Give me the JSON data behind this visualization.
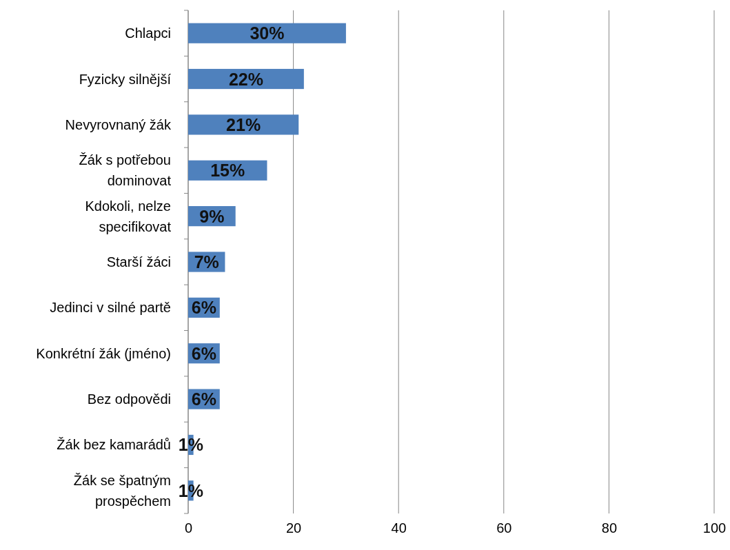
{
  "chart_data": {
    "type": "bar",
    "orientation": "horizontal",
    "categories": [
      "Chlapci",
      "Fyzicky silnější",
      "Nevyrovnaný žák",
      "Žák s potřebou dominovat",
      "Kdokoli, nelze specifikovat",
      "Starší žáci",
      "Jedinci v silné partě",
      "Konkrétní žák (jméno)",
      "Bez odpovědi",
      "Žák bez kamarádů",
      "Žák se špatným prospěchem"
    ],
    "values": [
      30,
      22,
      21,
      15,
      9,
      7,
      6,
      6,
      6,
      1,
      1
    ],
    "value_labels": [
      "30%",
      "22%",
      "21%",
      "15%",
      "9%",
      "7%",
      "6%",
      "6%",
      "6%",
      "1%",
      "1%"
    ],
    "color": "#4f81bd",
    "xlim": [
      0,
      100
    ],
    "xticks": [
      0,
      20,
      40,
      60,
      80,
      100
    ],
    "grid": "x"
  }
}
